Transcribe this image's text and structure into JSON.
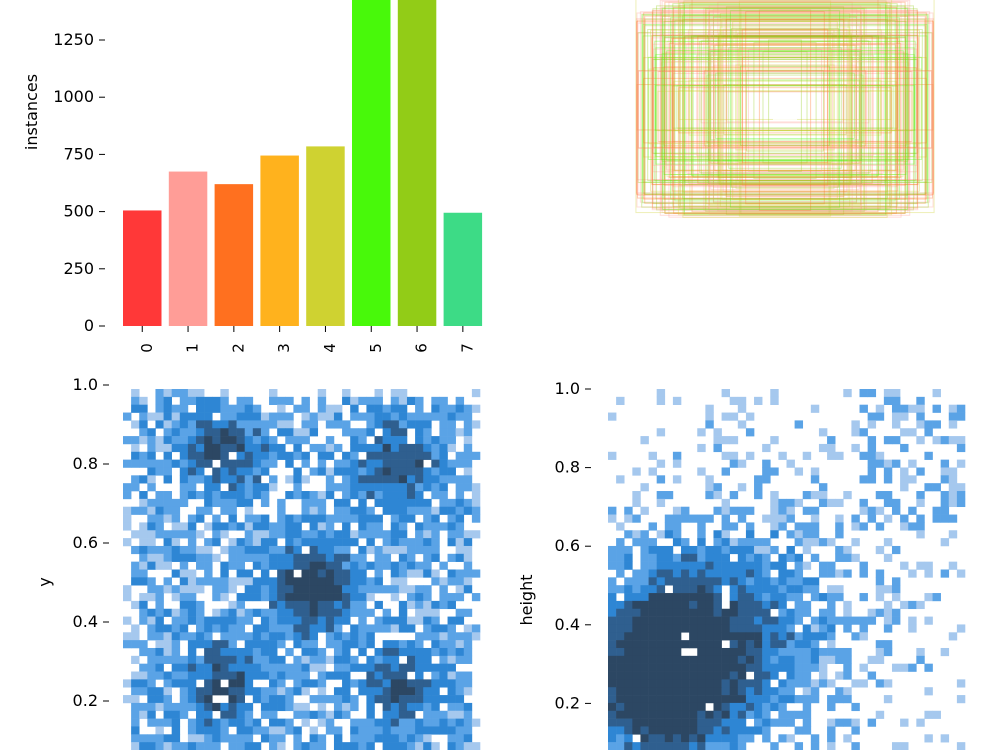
{
  "chart_data": [
    {
      "type": "bar",
      "ylabel": "instances",
      "categories": [
        "0",
        "1",
        "2",
        "3",
        "4",
        "5",
        "6",
        "7"
      ],
      "values": [
        505,
        675,
        620,
        745,
        785,
        1440,
        1440,
        495
      ],
      "colors": [
        "#ff3838",
        "#ff9d97",
        "#ff701f",
        "#ffb21d",
        "#cfd231",
        "#48f90a",
        "#92cc17",
        "#3ddb86"
      ],
      "yticks": [
        "0",
        "250",
        "500",
        "750",
        "1000",
        "1250"
      ],
      "ylim": [
        0,
        1440
      ]
    },
    {
      "type": "heatmap",
      "description_role": "box-overlay",
      "stroke_colors": [
        "#48f90a",
        "#92cc17",
        "#ff701f",
        "#ff9d97",
        "#cfd231"
      ]
    },
    {
      "type": "heatmap",
      "ylabel": "y",
      "yticks": [
        "0.2",
        "0.4",
        "0.6",
        "0.8",
        "1.0"
      ],
      "ylim": [
        0.0,
        1.0
      ],
      "xlim": [
        0.0,
        1.0
      ],
      "clusters": [
        {
          "x": 0.28,
          "y": 0.82,
          "weight": 0.7
        },
        {
          "x": 0.77,
          "y": 0.79,
          "weight": 0.7
        },
        {
          "x": 0.53,
          "y": 0.45,
          "weight": 1.0
        },
        {
          "x": 0.28,
          "y": 0.18,
          "weight": 0.7
        },
        {
          "x": 0.77,
          "y": 0.18,
          "weight": 0.7
        }
      ],
      "colormap": [
        "#a5c8ee",
        "#5aa3e6",
        "#2e86d4",
        "#2f5f8f",
        "#2c4763"
      ]
    },
    {
      "type": "heatmap",
      "ylabel": "height",
      "yticks": [
        "0.2",
        "0.4",
        "0.6",
        "0.8",
        "1.0"
      ],
      "ylim": [
        0.0,
        1.0
      ],
      "xlim": [
        0.0,
        1.0
      ],
      "peak": {
        "x": 0.12,
        "y": 0.22
      },
      "colormap": [
        "#a5c8ee",
        "#5aa3e6",
        "#2e86d4",
        "#2f5f8f",
        "#2c4763"
      ]
    }
  ]
}
